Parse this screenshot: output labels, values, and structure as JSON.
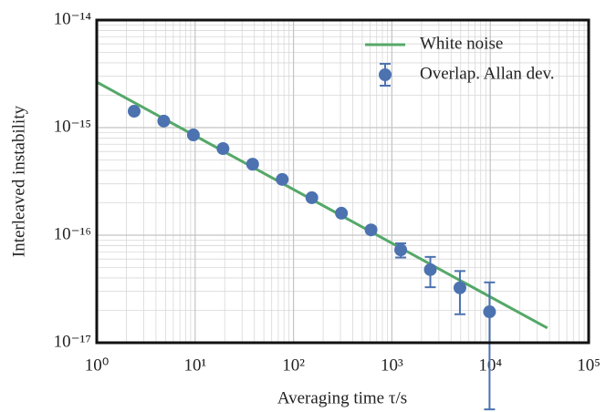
{
  "chart_data": {
    "type": "errorbar",
    "xlabel": "Averaging time τ/s",
    "ylabel": "Interleaved instability",
    "xscale": "log",
    "yscale": "log",
    "grid": true,
    "legend": "upper right",
    "xlim": [
      1,
      100000
    ],
    "xticks": [
      {
        "value": 1,
        "label": "10⁰"
      },
      {
        "value": 10,
        "label": "10¹"
      },
      {
        "value": 100,
        "label": "10²"
      },
      {
        "value": 1000,
        "label": "10³"
      },
      {
        "value": 10000,
        "label": "10⁴"
      },
      {
        "value": 100000,
        "label": "10⁵"
      }
    ],
    "ylim": [
      1e-17,
      1e-14
    ],
    "yticks": [
      {
        "value": 1e-17,
        "label": "10⁻¹⁷"
      },
      {
        "value": 1e-16,
        "label": "10⁻¹⁶"
      },
      {
        "value": 1e-15,
        "label": "10⁻¹⁵"
      },
      {
        "value": 1e-14,
        "label": "10⁻¹⁴"
      }
    ],
    "series": [
      {
        "name": "White noise",
        "style": "line",
        "color": "#55a868",
        "x": [
          1,
          38000
        ],
        "values": [
          2.65e-15,
          1.37e-17
        ]
      },
      {
        "name": "Overlap. Allan dev.",
        "style": "errorbar",
        "color": "#4c72b0",
        "x": [
          2.4,
          4.8,
          9.6,
          19.2,
          38.4,
          76.8,
          153.6,
          307,
          614,
          1229,
          2458,
          4915,
          9830
        ],
        "values": [
          1.42e-15,
          1.15e-15,
          8.55e-16,
          6.38e-16,
          4.57e-16,
          3.3e-16,
          2.23e-16,
          1.6e-16,
          1.12e-16,
          7.3e-17,
          4.78e-17,
          3.24e-17,
          1.94e-17
        ],
        "errors": [
          2e-17,
          1.8e-17,
          1.5e-17,
          1.2e-17,
          1e-17,
          9e-18,
          8e-18,
          8e-18,
          7e-18,
          1.1e-17,
          1.5e-17,
          1.4e-17,
          1.7e-17
        ]
      }
    ]
  }
}
